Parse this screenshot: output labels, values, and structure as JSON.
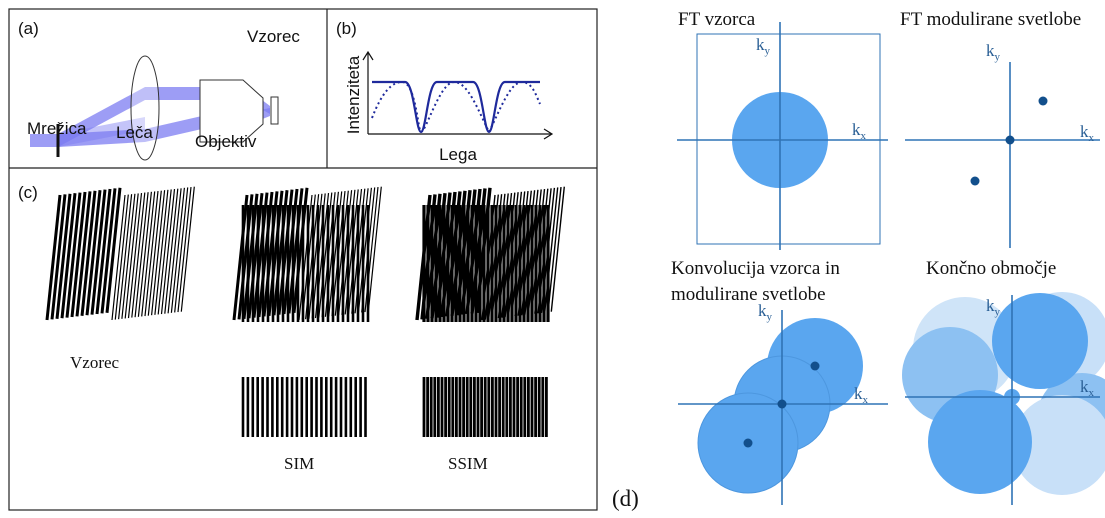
{
  "panel_a": {
    "label": "(a)",
    "sample": "Vzorec",
    "grating": "Mrežica",
    "lens": "Leča",
    "objective": "Objektiv"
  },
  "panel_b": {
    "label": "(b)",
    "y_axis": "Intenziteta",
    "x_axis": "Lega"
  },
  "panel_c": {
    "label": "(c)",
    "sample": "Vzorec",
    "sim": "SIM",
    "ssim": "SSIM"
  },
  "panel_d": {
    "label": "(d)",
    "plots": [
      {
        "title": [
          "FT vzorca"
        ],
        "kx": {
          "k": "k",
          "sub": "x"
        },
        "ky": {
          "k": "k",
          "sub": "y"
        }
      },
      {
        "title": [
          "FT modulirane svetlobe"
        ],
        "kx": {
          "k": "k",
          "sub": "x"
        },
        "ky": {
          "k": "k",
          "sub": "y"
        }
      },
      {
        "title": [
          "Konvolucija vzorca in",
          "modulirane svetlobe"
        ],
        "kx": {
          "k": "k",
          "sub": "x"
        },
        "ky": {
          "k": "k",
          "sub": "y"
        }
      },
      {
        "title": [
          "Končno območje"
        ],
        "kx": {
          "k": "k",
          "sub": "x"
        },
        "ky": {
          "k": "k",
          "sub": "y"
        }
      }
    ]
  }
}
